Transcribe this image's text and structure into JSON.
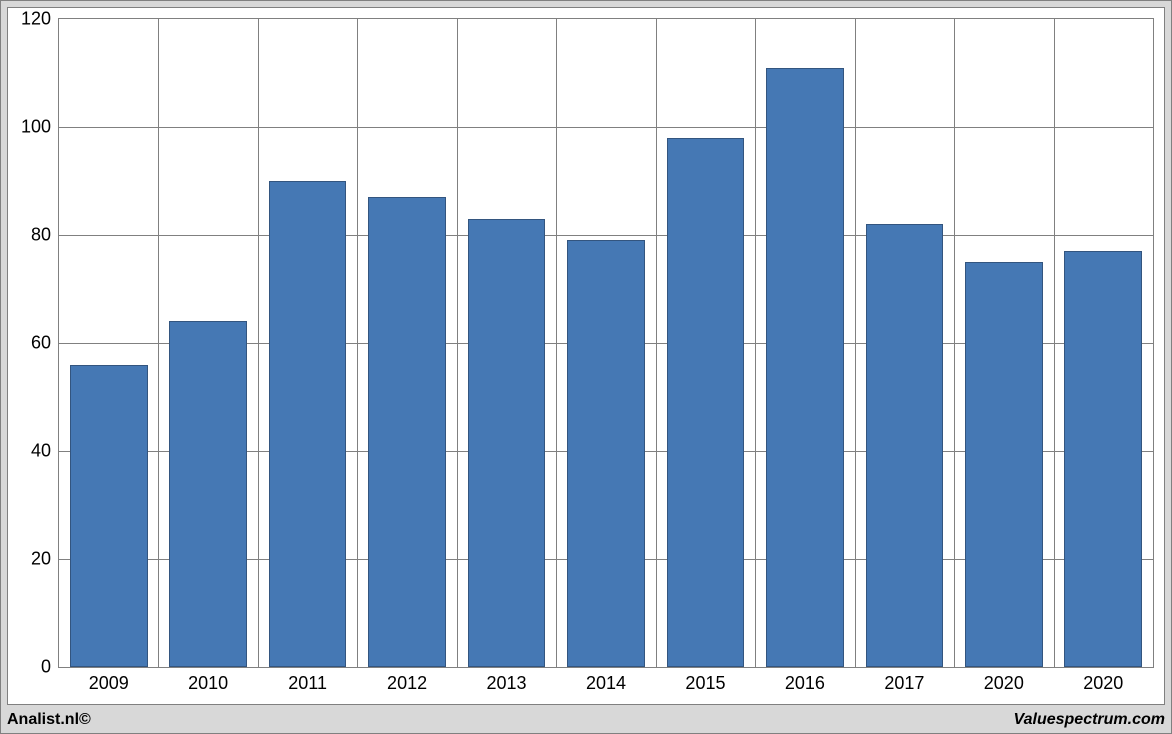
{
  "chart": {
    "type": "bar",
    "categories": [
      "2009",
      "2010",
      "2011",
      "2012",
      "2013",
      "2014",
      "2015",
      "2016",
      "2017",
      "2020",
      "2020"
    ],
    "values": [
      56,
      64,
      90,
      87,
      83,
      79,
      98,
      111,
      82,
      75,
      77
    ],
    "bar_color": "#4578b4",
    "bar_border_color": "#33557f",
    "ylim_min": 0,
    "ylim_max": 120,
    "ytick_step": 20,
    "yticks": [
      0,
      20,
      40,
      60,
      80,
      100,
      120
    ],
    "grid_color": "#808080",
    "background_color": "#ffffff",
    "outer_background_color": "#d8d8d8",
    "label_fontsize_pt": 14,
    "bar_width_ratio": 0.78
  },
  "footer": {
    "left": "Analist.nl©",
    "right": "Valuespectrum.com"
  }
}
